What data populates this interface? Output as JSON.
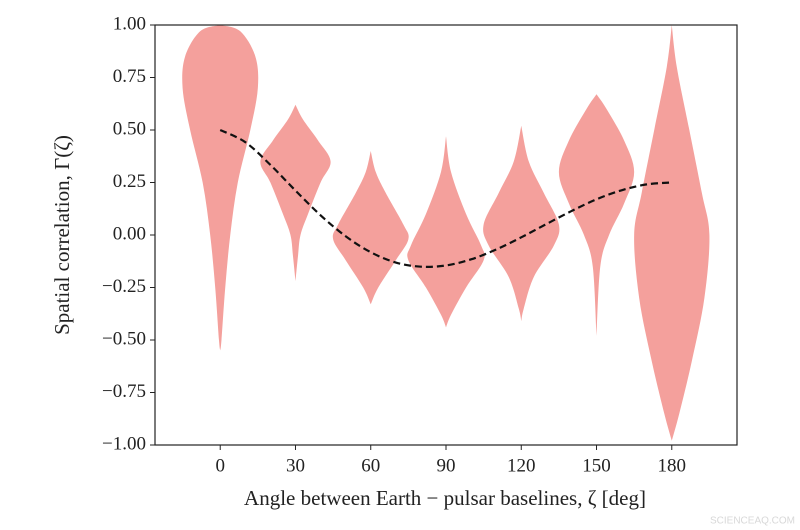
{
  "chart_data": {
    "type": "violin",
    "xlabel": "Angle between Earth − pulsar baselines, ζ [deg]",
    "ylabel": "Spatial correlation, Γ(ζ)",
    "watermark": "SCIENCEAQ.COM",
    "xlim": [
      -26,
      206
    ],
    "ylim": [
      -1.0,
      1.0
    ],
    "xticks": [
      0,
      30,
      60,
      90,
      120,
      150,
      180
    ],
    "yticks": [
      {
        "value": -1.0,
        "label": "−1.00"
      },
      {
        "value": -0.75,
        "label": "−0.75"
      },
      {
        "value": -0.5,
        "label": "−0.50"
      },
      {
        "value": -0.25,
        "label": "−0.25"
      },
      {
        "value": 0,
        "label": "0.00"
      },
      {
        "value": 0.25,
        "label": "0.25"
      },
      {
        "value": 0.5,
        "label": "0.50"
      },
      {
        "value": 0.75,
        "label": "0.75"
      },
      {
        "value": 1.0,
        "label": "1.00"
      }
    ],
    "violin_color": "#f4a09c",
    "violins": [
      {
        "x": 0,
        "y": [
          1.0,
          0.97,
          0.85,
          0.7,
          0.5,
          0.25,
          0,
          -0.25,
          -0.5,
          -0.55
        ],
        "half_width": [
          0,
          8,
          14,
          15,
          12,
          7,
          4,
          2,
          0.5,
          0
        ]
      },
      {
        "x": 30,
        "y": [
          0.62,
          0.55,
          0.45,
          0.35,
          0.25,
          0.1,
          0,
          -0.1,
          -0.22
        ],
        "half_width": [
          0,
          3,
          9,
          14,
          10,
          5,
          2,
          1,
          0
        ]
      },
      {
        "x": 60,
        "y": [
          0.4,
          0.3,
          0.2,
          0.05,
          -0.02,
          -0.12,
          -0.25,
          -0.33
        ],
        "half_width": [
          0,
          2,
          6,
          13,
          15,
          10,
          3,
          0
        ]
      },
      {
        "x": 90,
        "y": [
          0.47,
          0.3,
          0.1,
          -0.05,
          -0.12,
          -0.25,
          -0.38,
          -0.44
        ],
        "half_width": [
          0,
          2,
          8,
          14,
          15,
          8,
          2,
          0
        ]
      },
      {
        "x": 120,
        "y": [
          0.52,
          0.35,
          0.2,
          0.05,
          -0.05,
          -0.2,
          -0.35,
          -0.41
        ],
        "half_width": [
          0,
          3,
          9,
          15,
          13,
          5,
          1,
          0
        ]
      },
      {
        "x": 150,
        "y": [
          0.67,
          0.6,
          0.45,
          0.3,
          0.15,
          0,
          -0.15,
          -0.48
        ],
        "half_width": [
          0,
          4,
          11,
          15,
          11,
          5,
          1.5,
          0
        ]
      },
      {
        "x": 180,
        "y": [
          1.0,
          0.8,
          0.5,
          0.2,
          0,
          -0.3,
          -0.6,
          -0.85,
          -0.98
        ],
        "half_width": [
          0,
          2,
          7,
          12,
          15,
          13,
          8,
          3,
          0
        ]
      }
    ],
    "curve": {
      "color": "#111111",
      "x": [
        0,
        10,
        20,
        30,
        40,
        50,
        60,
        70,
        80,
        90,
        100,
        110,
        120,
        130,
        140,
        150,
        160,
        170,
        180
      ],
      "values": [
        0.5,
        0.442,
        0.334,
        0.2115,
        0.094,
        -0.006,
        -0.082,
        -0.131,
        -0.151,
        -0.145,
        -0.116,
        -0.069,
        -0.011,
        0.052,
        0.114,
        0.17,
        0.213,
        0.241,
        0.25
      ]
    }
  }
}
